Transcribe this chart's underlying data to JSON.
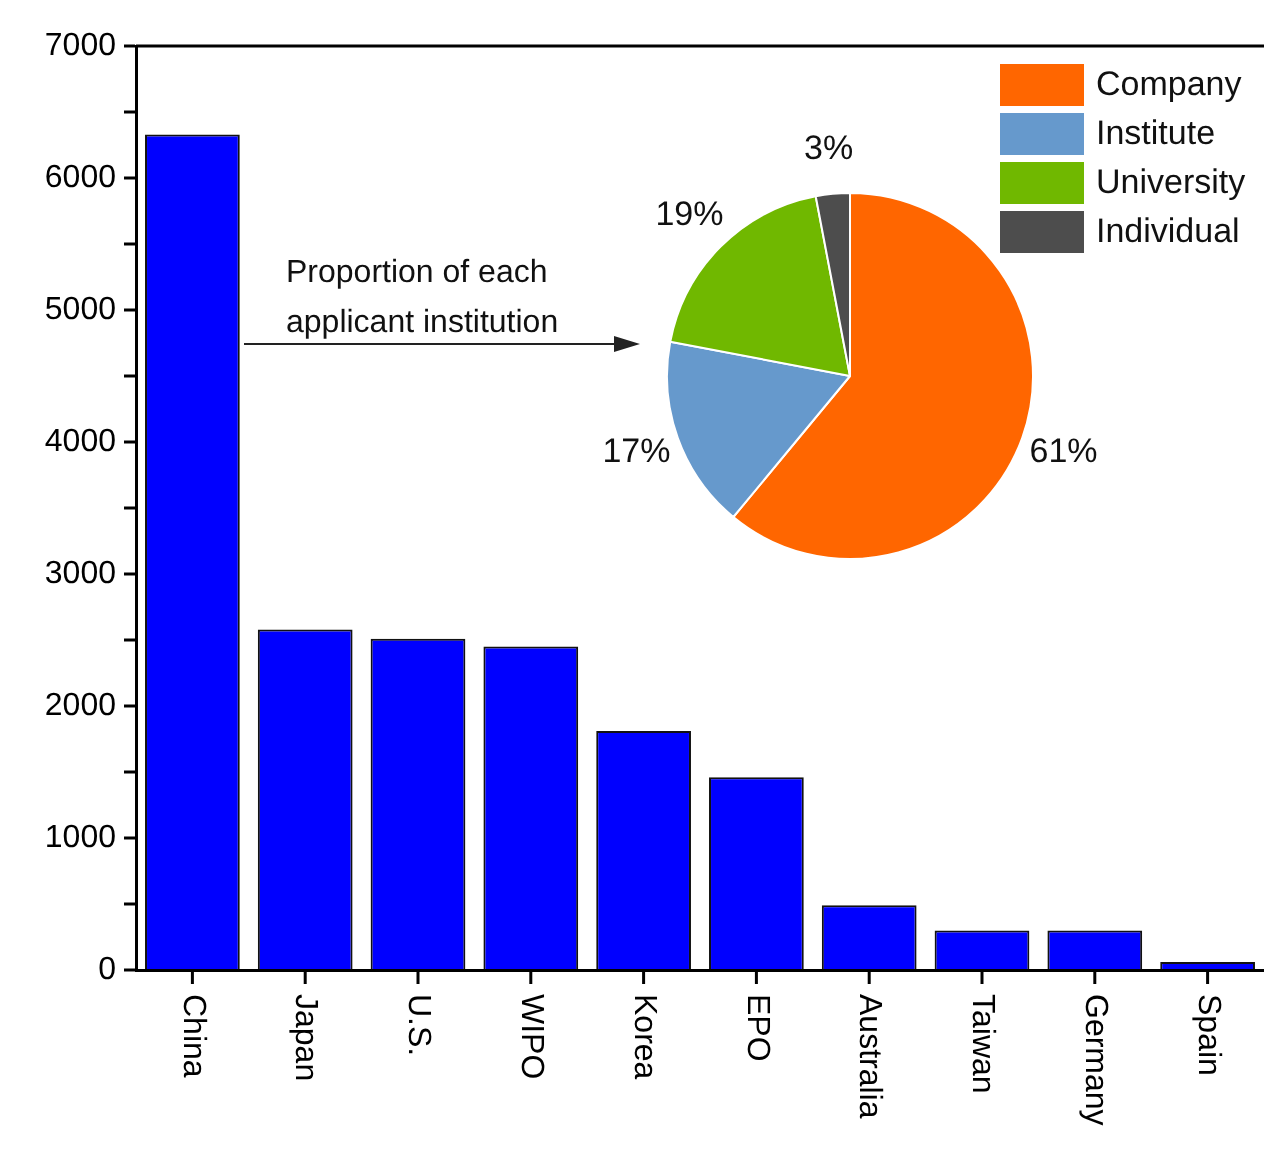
{
  "chart_data": [
    {
      "type": "bar",
      "categories": [
        "China",
        "Japan",
        "U.S.",
        "WIPO",
        "Korea",
        "EPO",
        "Australia",
        "Taiwan",
        "Germany",
        "Spain"
      ],
      "values": [
        6330,
        2580,
        2510,
        2450,
        1810,
        1460,
        490,
        300,
        300,
        60
      ],
      "color": "#0000ff",
      "ylim": [
        0,
        7000
      ],
      "yticks": [
        0,
        {
          "value": 500,
          "label": null
        },
        1000,
        {
          "value": 1500,
          "label": null
        },
        2000,
        {
          "value": 2500,
          "label": null
        },
        3000,
        {
          "value": 3500,
          "label": null
        },
        4000,
        {
          "value": 4500,
          "label": null
        },
        5000,
        {
          "value": 5500,
          "label": null
        },
        6000,
        {
          "value": 6500,
          "label": null
        },
        7000
      ],
      "grid": false,
      "legend": false
    },
    {
      "type": "pie",
      "categories": [
        "Company",
        "Institute",
        "University",
        "Individual"
      ],
      "values": [
        61,
        17,
        19,
        3
      ],
      "colors": [
        "#ff6600",
        "#6699cc",
        "#70b800",
        "#4d4d4d"
      ],
      "value_labels": [
        "61%",
        "17%",
        "19%",
        "3%"
      ],
      "legend": "top right",
      "annotations": [
        "Proportion of each applicant institution"
      ]
    }
  ]
}
